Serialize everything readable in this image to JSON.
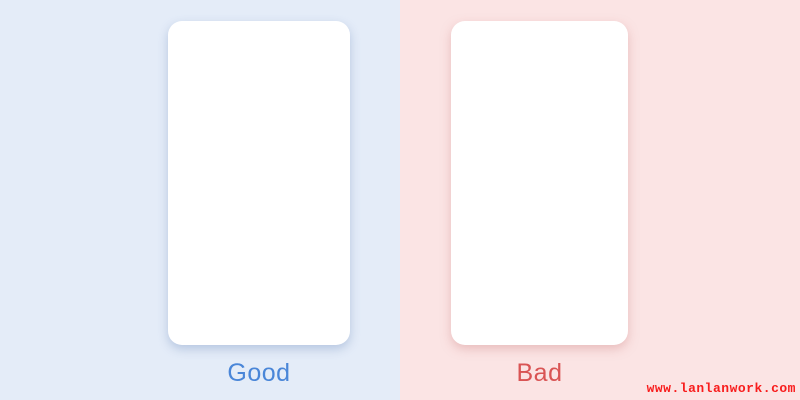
{
  "panels": [
    {
      "label": "Good",
      "background": "#e4ecf8",
      "label_color": "#4a86d8",
      "card_color": "#ffffff"
    },
    {
      "label": "Bad",
      "background": "#fbe4e4",
      "label_color": "#d95454",
      "card_color": "#ffffff"
    }
  ],
  "watermark": {
    "text": "www.lanlanwork.com",
    "color": "#f81c1c"
  }
}
